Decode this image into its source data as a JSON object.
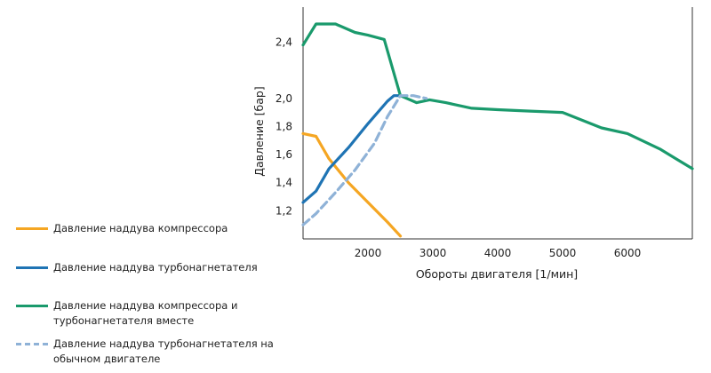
{
  "chart_data": {
    "type": "line",
    "xlabel": "Обороты двигателя [1/мин]",
    "ylabel": "Давление [бар]",
    "xlim": [
      1000,
      7000
    ],
    "ylim": [
      1.0,
      2.65
    ],
    "xticks": [
      2000,
      3000,
      4000,
      5000,
      6000
    ],
    "yticks": [
      "1,2",
      "1,4",
      "1,6",
      "1,8",
      "2,0",
      "2,4"
    ],
    "ytick_values": [
      1.2,
      1.4,
      1.6,
      1.8,
      2.0,
      2.4
    ],
    "grid": false,
    "legend_position": "left, outside plot",
    "series": [
      {
        "name": "Давление наддува компрессора",
        "color": "#f5a623",
        "dash": false,
        "x": [
          1000,
          1200,
          1400,
          1700,
          2000,
          2300,
          2500
        ],
        "y": [
          1.75,
          1.73,
          1.57,
          1.4,
          1.26,
          1.12,
          1.02
        ]
      },
      {
        "name": "Давление наддува турбонагнетателя",
        "color": "#1f74b4",
        "dash": false,
        "x": [
          1000,
          1200,
          1400,
          1700,
          2000,
          2300,
          2400,
          2500
        ],
        "y": [
          1.26,
          1.34,
          1.5,
          1.65,
          1.82,
          1.98,
          2.02,
          2.02
        ]
      },
      {
        "name": "Давление наддува компрессора и турбонагнетателя вместе",
        "color": "#1a9a6c",
        "dash": false,
        "x": [
          1000,
          1200,
          1500,
          1800,
          2000,
          2250,
          2500,
          2750,
          2950,
          3200,
          3600,
          4000,
          4500,
          5000,
          5600,
          6000,
          6500,
          7000
        ],
        "y": [
          2.38,
          2.53,
          2.53,
          2.47,
          2.45,
          2.42,
          2.02,
          1.97,
          1.99,
          1.97,
          1.93,
          1.92,
          1.91,
          1.9,
          1.79,
          1.75,
          1.64,
          1.5
        ]
      },
      {
        "name": "Давление наддува турбонагнетателя на обычном двигателе",
        "color": "#8fb2d7",
        "dash": true,
        "x": [
          1000,
          1200,
          1500,
          1800,
          2100,
          2300,
          2500,
          2700,
          2900
        ],
        "y": [
          1.1,
          1.18,
          1.33,
          1.49,
          1.68,
          1.87,
          2.02,
          2.02,
          2.0
        ]
      }
    ]
  }
}
